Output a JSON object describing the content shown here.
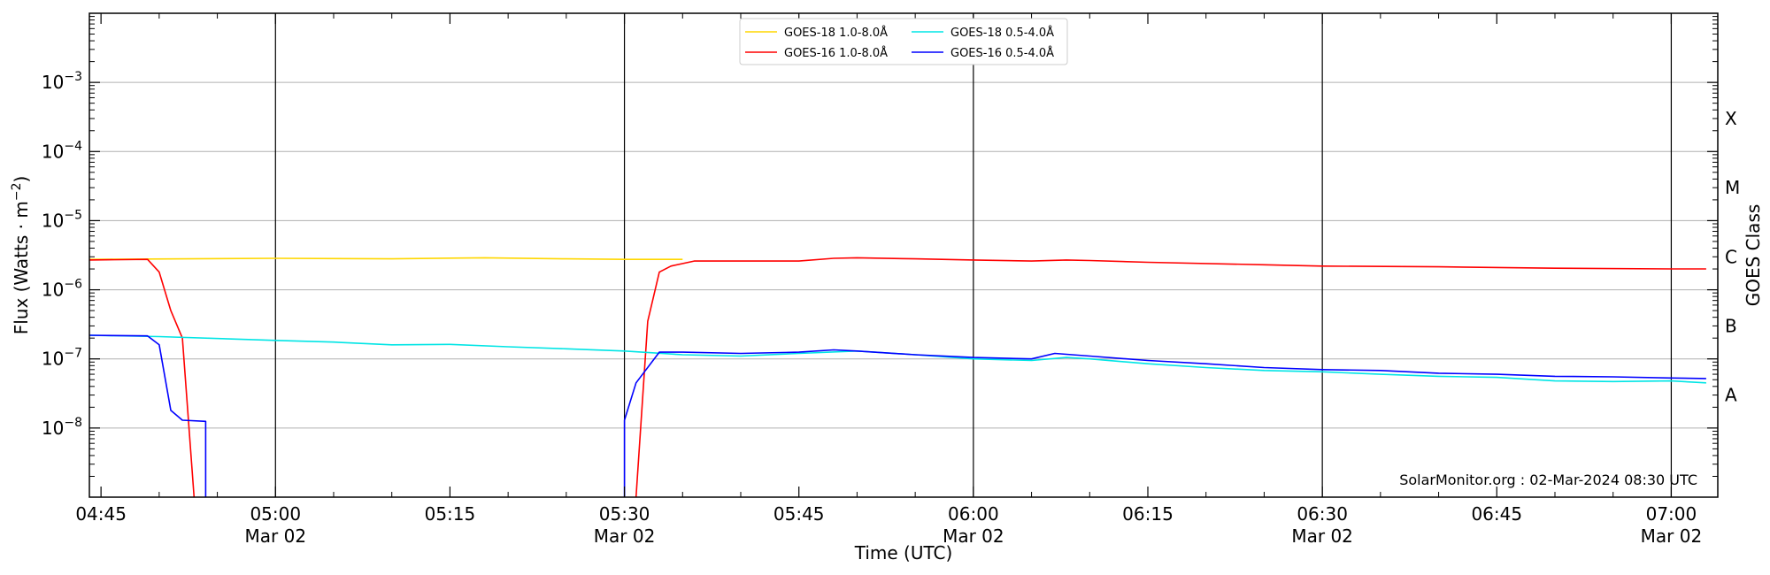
{
  "chart_data": {
    "type": "line",
    "xlabel": "Time (UTC)",
    "ylabel": "Flux (Watts · m",
    "ylabel_sup": "−2",
    "ylabel_close": ")",
    "right_label": "GOES Class",
    "watermark": "SolarMonitor.org : 02-Mar-2024 08:30 UTC",
    "y_scale": "log",
    "xlim": [
      "04:44",
      "07:04"
    ],
    "ylim": [
      1e-09,
      0.01
    ],
    "grid": "horizontal at decades",
    "legend_position": "top-center",
    "x_ticks": [
      {
        "t": "04:45",
        "label": "04:45",
        "sub": ""
      },
      {
        "t": "05:00",
        "label": "05:00",
        "sub": "Mar 02"
      },
      {
        "t": "05:15",
        "label": "05:15",
        "sub": ""
      },
      {
        "t": "05:30",
        "label": "05:30",
        "sub": "Mar 02"
      },
      {
        "t": "05:45",
        "label": "05:45",
        "sub": ""
      },
      {
        "t": "06:00",
        "label": "06:00",
        "sub": "Mar 02"
      },
      {
        "t": "06:15",
        "label": "06:15",
        "sub": ""
      },
      {
        "t": "06:30",
        "label": "06:30",
        "sub": "Mar 02"
      },
      {
        "t": "06:45",
        "label": "06:45",
        "sub": ""
      },
      {
        "t": "07:00",
        "label": "07:00",
        "sub": "Mar 02"
      }
    ],
    "vertical_lines": [
      "05:00",
      "05:30",
      "06:00",
      "06:30",
      "07:00"
    ],
    "y_ticks": [
      {
        "v": 1e-08,
        "base": "10",
        "exp": "−8"
      },
      {
        "v": 1e-07,
        "base": "10",
        "exp": "−7"
      },
      {
        "v": 1e-06,
        "base": "10",
        "exp": "−6"
      },
      {
        "v": 1e-05,
        "base": "10",
        "exp": "−5"
      },
      {
        "v": 0.0001,
        "base": "10",
        "exp": "−4"
      },
      {
        "v": 0.001,
        "base": "10",
        "exp": "−3"
      }
    ],
    "goes_classes": [
      {
        "label": "A",
        "v": 3e-08
      },
      {
        "label": "B",
        "v": 3e-07
      },
      {
        "label": "C",
        "v": 3e-06
      },
      {
        "label": "M",
        "v": 3e-05
      },
      {
        "label": "X",
        "v": 0.0003
      }
    ],
    "series": [
      {
        "name": "GOES-18 1.0-8.0Å",
        "color": "#ffd700",
        "points": [
          [
            "04:44",
            2.75e-06
          ],
          [
            "05:00",
            2.85e-06
          ],
          [
            "05:10",
            2.8e-06
          ],
          [
            "05:18",
            2.9e-06
          ],
          [
            "05:25",
            2.8e-06
          ],
          [
            "05:30",
            2.75e-06
          ],
          [
            "05:35",
            2.75e-06
          ]
        ]
      },
      {
        "name": "GOES-16 1.0-8.0Å",
        "color": "#ff0000",
        "points": [
          [
            "04:44",
            2.7e-06
          ],
          [
            "04:49",
            2.75e-06
          ],
          [
            "04:50",
            1.8e-06
          ],
          [
            "04:51",
            5e-07
          ],
          [
            "04:52",
            2e-07
          ],
          [
            "04:53",
            1e-09
          ]
        ],
        "points2": [
          [
            "05:31",
            1e-09
          ],
          [
            "05:32",
            3.5e-07
          ],
          [
            "05:33",
            1.8e-06
          ],
          [
            "05:34",
            2.2e-06
          ],
          [
            "05:36",
            2.6e-06
          ],
          [
            "05:45",
            2.6e-06
          ],
          [
            "05:48",
            2.85e-06
          ],
          [
            "05:50",
            2.9e-06
          ],
          [
            "05:55",
            2.8e-06
          ],
          [
            "06:00",
            2.7e-06
          ],
          [
            "06:05",
            2.6e-06
          ],
          [
            "06:08",
            2.7e-06
          ],
          [
            "06:10",
            2.65e-06
          ],
          [
            "06:15",
            2.5e-06
          ],
          [
            "06:25",
            2.3e-06
          ],
          [
            "06:30",
            2.2e-06
          ],
          [
            "06:40",
            2.15e-06
          ],
          [
            "06:50",
            2.05e-06
          ],
          [
            "07:00",
            2e-06
          ],
          [
            "07:03",
            2e-06
          ]
        ]
      },
      {
        "name": "GOES-18 0.5-4.0Å",
        "color": "#00e5e5",
        "points": [
          [
            "04:44",
            2.2e-07
          ],
          [
            "04:50",
            2.1e-07
          ],
          [
            "05:00",
            1.85e-07
          ],
          [
            "05:05",
            1.75e-07
          ],
          [
            "05:10",
            1.6e-07
          ],
          [
            "05:15",
            1.62e-07
          ],
          [
            "05:20",
            1.5e-07
          ],
          [
            "05:25",
            1.4e-07
          ],
          [
            "05:30",
            1.3e-07
          ],
          [
            "05:35",
            1.15e-07
          ],
          [
            "05:40",
            1.1e-07
          ],
          [
            "05:45",
            1.2e-07
          ],
          [
            "05:50",
            1.3e-07
          ],
          [
            "05:55",
            1.15e-07
          ],
          [
            "06:00",
            1e-07
          ],
          [
            "06:05",
            9.5e-08
          ],
          [
            "06:08",
            1.05e-07
          ],
          [
            "06:10",
            1e-07
          ],
          [
            "06:15",
            8.5e-08
          ],
          [
            "06:20",
            7.5e-08
          ],
          [
            "06:25",
            6.8e-08
          ],
          [
            "06:30",
            6.5e-08
          ],
          [
            "06:35",
            6e-08
          ],
          [
            "06:40",
            5.6e-08
          ],
          [
            "06:45",
            5.4e-08
          ],
          [
            "06:50",
            4.8e-08
          ],
          [
            "06:55",
            4.7e-08
          ],
          [
            "07:00",
            4.8e-08
          ],
          [
            "07:03",
            4.5e-08
          ]
        ]
      },
      {
        "name": "GOES-16 0.5-4.0Å",
        "color": "#0000ff",
        "points": [
          [
            "04:44",
            2.2e-07
          ],
          [
            "04:49",
            2.15e-07
          ],
          [
            "04:50",
            1.6e-07
          ],
          [
            "04:51",
            1.8e-08
          ],
          [
            "04:52",
            1.3e-08
          ],
          [
            "04:54",
            1.25e-08
          ],
          [
            "04:54",
            1e-09
          ]
        ],
        "points2": [
          [
            "05:30",
            1e-09
          ],
          [
            "05:30",
            1.3e-08
          ],
          [
            "05:31",
            4.5e-08
          ],
          [
            "05:33",
            1.25e-07
          ],
          [
            "05:35",
            1.25e-07
          ],
          [
            "05:40",
            1.2e-07
          ],
          [
            "05:45",
            1.25e-07
          ],
          [
            "05:48",
            1.35e-07
          ],
          [
            "05:50",
            1.3e-07
          ],
          [
            "05:55",
            1.15e-07
          ],
          [
            "06:00",
            1.05e-07
          ],
          [
            "06:05",
            1e-07
          ],
          [
            "06:07",
            1.2e-07
          ],
          [
            "06:10",
            1.1e-07
          ],
          [
            "06:15",
            9.5e-08
          ],
          [
            "06:20",
            8.5e-08
          ],
          [
            "06:25",
            7.5e-08
          ],
          [
            "06:30",
            7e-08
          ],
          [
            "06:35",
            6.8e-08
          ],
          [
            "06:40",
            6.2e-08
          ],
          [
            "06:45",
            6e-08
          ],
          [
            "06:50",
            5.6e-08
          ],
          [
            "06:55",
            5.5e-08
          ],
          [
            "07:00",
            5.3e-08
          ],
          [
            "07:03",
            5.2e-08
          ]
        ]
      }
    ]
  }
}
